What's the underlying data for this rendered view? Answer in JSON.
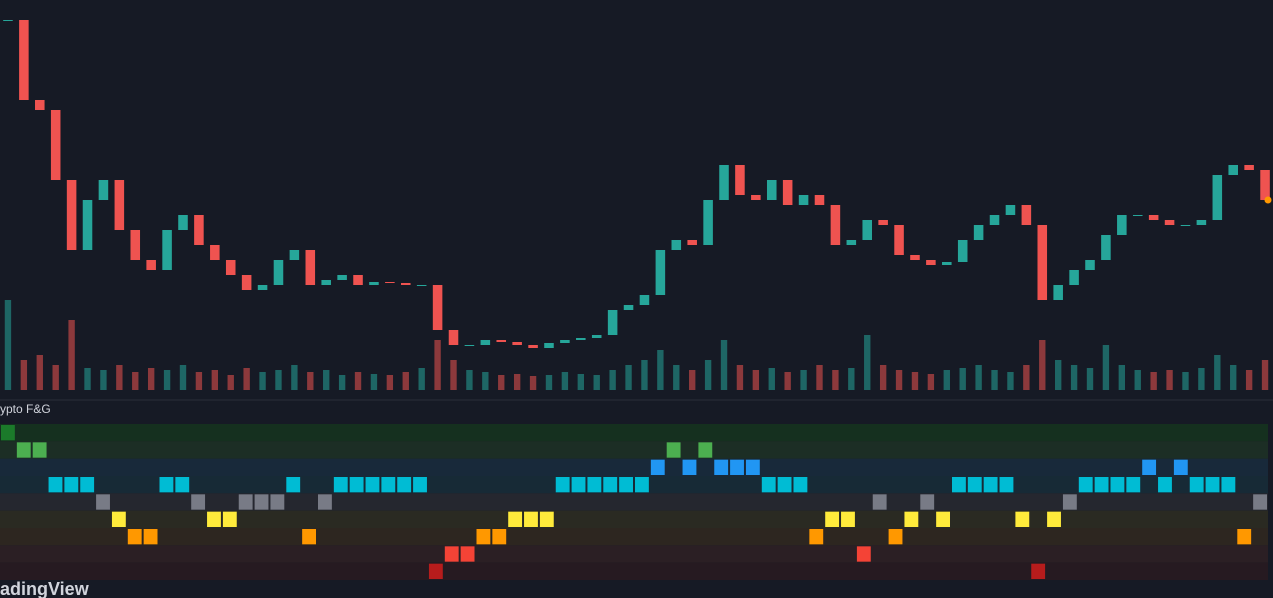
{
  "indicator_title": "ypto F&G",
  "watermark": "adingView",
  "chart_data": [
    {
      "type": "candles",
      "up_color": "#26a69a",
      "down_color": "#ef5350",
      "ylim": [
        0,
        400
      ],
      "values": [
        380,
        300,
        290,
        220,
        150,
        200,
        220,
        170,
        140,
        130,
        170,
        185,
        155,
        140,
        125,
        110,
        115,
        140,
        150,
        115,
        120,
        125,
        115,
        118,
        117,
        115,
        115,
        70,
        55,
        55,
        60,
        58,
        55,
        52,
        57,
        60,
        62,
        65,
        90,
        95,
        105,
        150,
        160,
        155,
        200,
        235,
        205,
        200,
        220,
        195,
        205,
        195,
        155,
        160,
        180,
        175,
        145,
        140,
        135,
        138,
        160,
        175,
        185,
        195,
        175,
        100,
        115,
        130,
        140,
        165,
        185,
        185,
        180,
        175,
        175,
        180,
        225,
        235,
        230,
        200
      ]
    },
    {
      "type": "volume",
      "ylim": [
        0,
        400
      ],
      "values": [
        90,
        30,
        35,
        25,
        70,
        22,
        20,
        25,
        18,
        22,
        20,
        25,
        18,
        20,
        15,
        22,
        18,
        20,
        25,
        18,
        20,
        15,
        18,
        16,
        15,
        18,
        22,
        50,
        30,
        20,
        18,
        15,
        16,
        14,
        15,
        18,
        16,
        15,
        20,
        25,
        30,
        40,
        25,
        20,
        30,
        50,
        25,
        20,
        22,
        18,
        20,
        25,
        20,
        22,
        55,
        25,
        20,
        18,
        16,
        20,
        22,
        25,
        20,
        18,
        25,
        50,
        30,
        25,
        22,
        45,
        25,
        20,
        18,
        20,
        18,
        22,
        35,
        25,
        20,
        30
      ]
    },
    {
      "type": "level-strip",
      "colors": [
        "#1b7a2a",
        "#4caf50",
        "#2196f3",
        "#00bcd4",
        "#787b86",
        "#ffeb3b",
        "#ff9800",
        "#f44336",
        "#b71c1c"
      ],
      "band_colors": [
        "#15301f",
        "#1c2e25",
        "#18293a",
        "#172a36",
        "#25272f",
        "#2a2a22",
        "#2d2620",
        "#2b1f24",
        "#261a21"
      ],
      "values": [
        0,
        1,
        1,
        3,
        3,
        3,
        4,
        5,
        6,
        6,
        3,
        3,
        4,
        5,
        5,
        4,
        4,
        4,
        3,
        6,
        4,
        3,
        3,
        3,
        3,
        3,
        3,
        8,
        7,
        7,
        6,
        6,
        5,
        5,
        5,
        3,
        3,
        3,
        3,
        3,
        3,
        2,
        1,
        2,
        1,
        2,
        2,
        2,
        3,
        3,
        3,
        6,
        5,
        5,
        7,
        4,
        6,
        5,
        4,
        5,
        3,
        3,
        3,
        3,
        5,
        8,
        5,
        4,
        3,
        3,
        3,
        3,
        2,
        3,
        2,
        3,
        3,
        3,
        6,
        4
      ]
    }
  ]
}
